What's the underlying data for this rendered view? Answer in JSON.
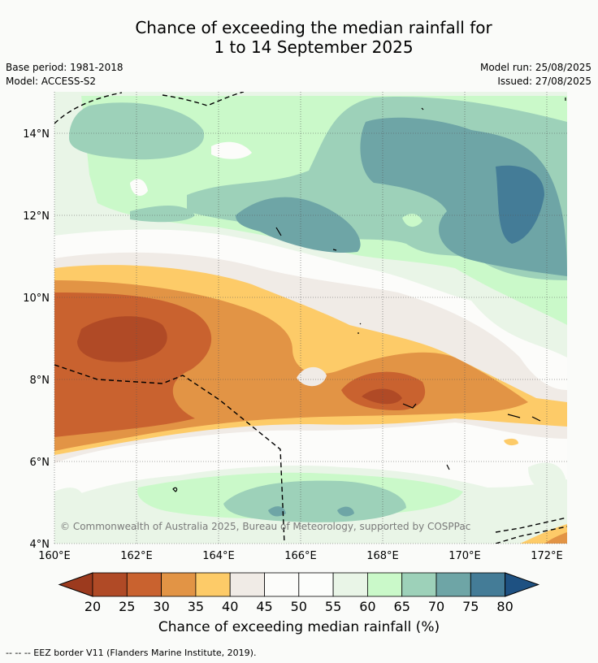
{
  "header": {
    "title_line1": "Chance of exceeding the median rainfall for",
    "title_line2": "1 to 14 September 2025",
    "base_period": "Base period: 1981-2018",
    "model": "Model: ACCESS-S2",
    "model_run": "Model run: 25/08/2025",
    "issued": "Issued: 27/08/2025"
  },
  "chart_data": {
    "type": "heatmap",
    "title": "Chance of exceeding the median rainfall for 1 to 14 September 2025",
    "xlabel": "",
    "ylabel": "",
    "x_ticks": [
      "160°E",
      "162°E",
      "164°E",
      "166°E",
      "168°E",
      "170°E",
      "172°E"
    ],
    "y_ticks": [
      "14°N",
      "12°N",
      "10°N",
      "8°N",
      "6°N",
      "4°N"
    ],
    "lon_range": [
      160,
      172.5
    ],
    "lat_range": [
      4,
      15.1
    ],
    "grid": true,
    "colorbar": {
      "label": "Chance of exceeding median rainfall (%)",
      "ticks": [
        "20",
        "25",
        "30",
        "35",
        "40",
        "45",
        "50",
        "55",
        "60",
        "65",
        "70",
        "75",
        "80"
      ],
      "bins": [
        {
          "range": [
            0,
            20
          ],
          "color": "#9c3a1e"
        },
        {
          "range": [
            20,
            25
          ],
          "color": "#b04a26"
        },
        {
          "range": [
            25,
            30
          ],
          "color": "#c9622f"
        },
        {
          "range": [
            30,
            35
          ],
          "color": "#e29445"
        },
        {
          "range": [
            35,
            40
          ],
          "color": "#fdcb68"
        },
        {
          "range": [
            40,
            45
          ],
          "color": "#f0ebe6"
        },
        {
          "range": [
            45,
            50
          ],
          "color": "#fcfcfa"
        },
        {
          "range": [
            50,
            55
          ],
          "color": "#fcfdfb"
        },
        {
          "range": [
            55,
            60
          ],
          "color": "#e9f5e7"
        },
        {
          "range": [
            60,
            65
          ],
          "color": "#caf9c9"
        },
        {
          "range": [
            65,
            70
          ],
          "color": "#9dd1b9"
        },
        {
          "range": [
            70,
            75
          ],
          "color": "#6ea5a6"
        },
        {
          "range": [
            75,
            80
          ],
          "color": "#447c97"
        },
        {
          "range": [
            80,
            100
          ],
          "color": "#1e5182"
        }
      ]
    },
    "regions": [
      {
        "name": "far north",
        "approx_lat": 14,
        "value_range": "55-75%, highest near 169-171°E 12-13°N (75-80%)"
      },
      {
        "name": "12°N band",
        "approx_lat": 12,
        "value_range": "65-75% around 165-168°E"
      },
      {
        "name": "10°N band",
        "approx_lat": 10,
        "value_range": "40-55%"
      },
      {
        "name": "9°N west",
        "approx_lat": 9,
        "value_range": "20-30%, lowest near 161-162°E"
      },
      {
        "name": "7.5°N central",
        "approx_lat": 7.5,
        "value_range": "25-35% near 168°E"
      },
      {
        "name": "6°N band",
        "approx_lat": 6,
        "value_range": "45-55%"
      },
      {
        "name": "4.5°N band",
        "approx_lat": 4.5,
        "value_range": "60-70% around 165-169°E"
      }
    ],
    "annotations": [
      "© Commonwealth of Australia 2025, Bureau of Meteorology, supported by COSPPac"
    ],
    "legend_note": "-- -- -- EEZ border V11 (Flanders Marine Institute, 2019)."
  }
}
